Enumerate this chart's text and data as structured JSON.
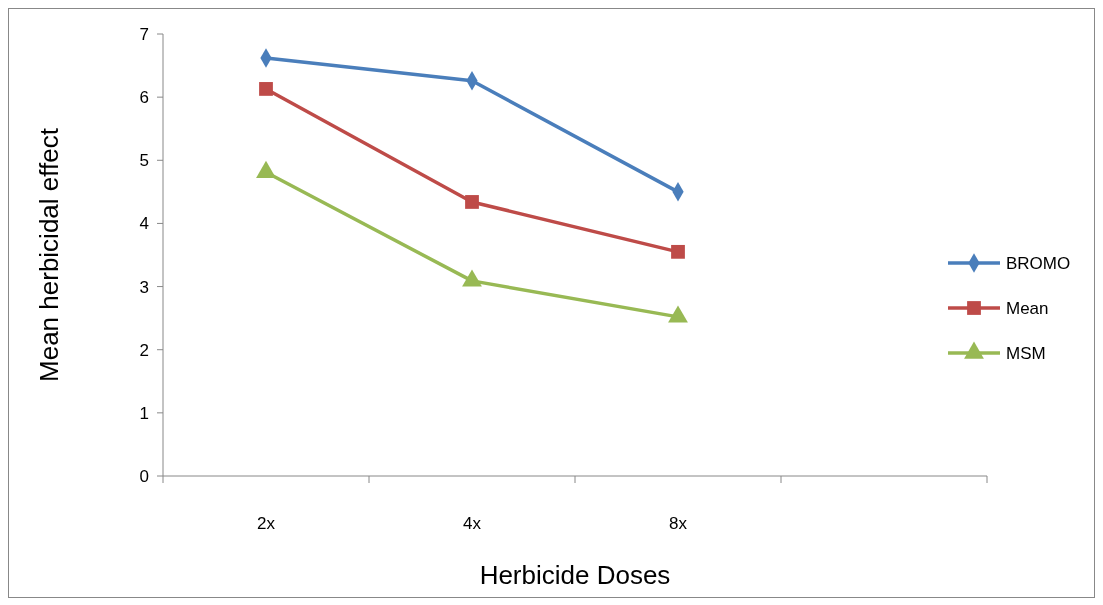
{
  "chart_data": {
    "type": "line",
    "xlabel": "Herbicide Doses",
    "ylabel": "Mean herbicidal effect",
    "categories": [
      "2x",
      "4x",
      "8x",
      null
    ],
    "series": [
      {
        "name": "BROMO",
        "color": "#4a7ebb",
        "marker": "diamond",
        "values": [
          6.62,
          6.26,
          4.5,
          null
        ]
      },
      {
        "name": "Mean",
        "color": "#be4b48",
        "marker": "square",
        "values": [
          6.13,
          4.34,
          3.55,
          null
        ]
      },
      {
        "name": "MSM",
        "color": "#98b954",
        "marker": "triangle",
        "values": [
          4.81,
          3.09,
          2.52,
          null
        ]
      }
    ],
    "ylim": [
      0,
      7
    ],
    "yticks": [
      0,
      1,
      2,
      3,
      4,
      5,
      6,
      7
    ],
    "grid": false,
    "legend": "right"
  }
}
